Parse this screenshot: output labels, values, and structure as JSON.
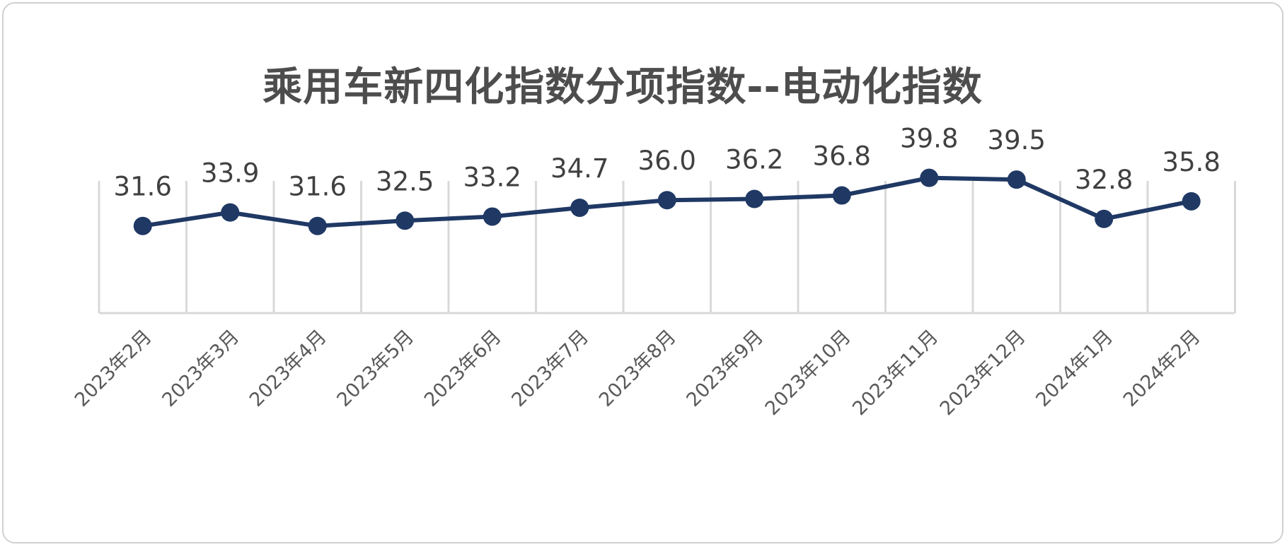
{
  "chart_data": {
    "type": "line",
    "title": "乘用车新四化指数分项指数--电动化指数",
    "categories": [
      "2023年2月",
      "2023年3月",
      "2023年4月",
      "2023年5月",
      "2023年6月",
      "2023年7月",
      "2023年8月",
      "2023年9月",
      "2023年10月",
      "2023年11月",
      "2023年12月",
      "2024年1月",
      "2024年2月"
    ],
    "series": [
      {
        "values": [
          31.6,
          33.9,
          31.6,
          32.5,
          33.2,
          34.7,
          36.0,
          36.2,
          36.8,
          39.8,
          39.5,
          32.8,
          35.8
        ]
      }
    ],
    "data_labels": [
      "31.6",
      "33.9",
      "31.6",
      "32.5",
      "33.2",
      "34.7",
      "36.0",
      "36.2",
      "36.8",
      "39.8",
      "39.5",
      "32.8",
      "35.8"
    ],
    "ylim": [
      0,
      45
    ],
    "grid": "vertical",
    "line_color": "#1f3864",
    "marker_color": "#1f3864",
    "grid_color": "#d9d9d9"
  }
}
